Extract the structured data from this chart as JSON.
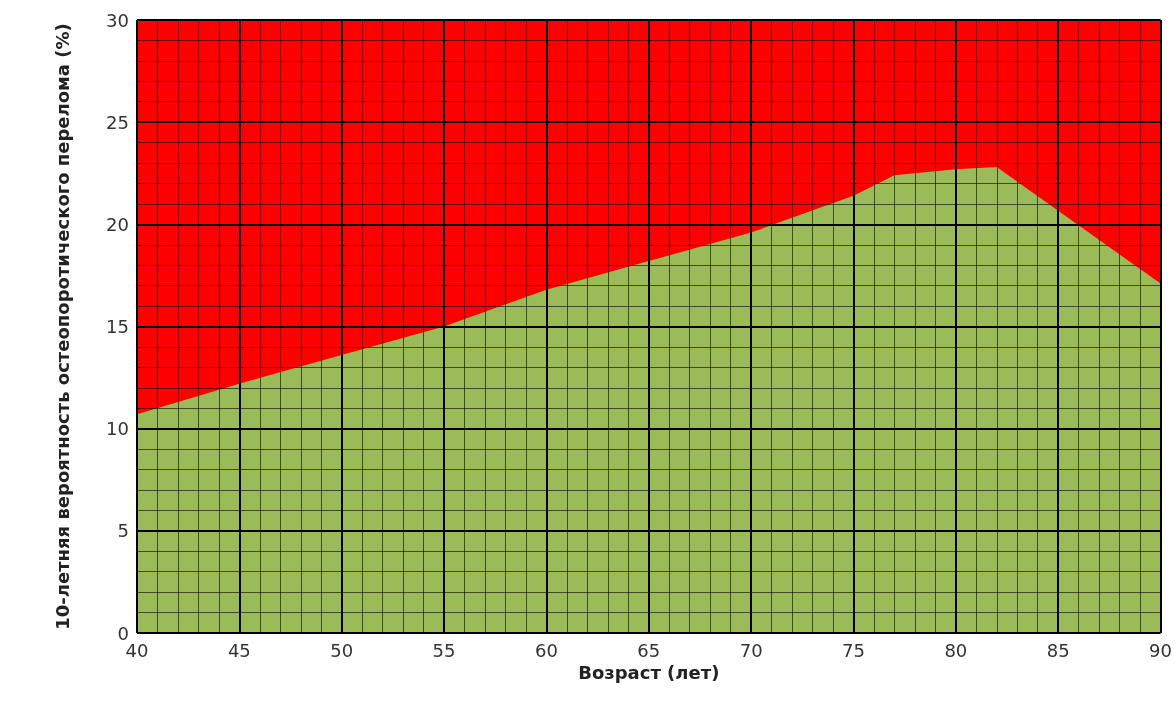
{
  "chart_data": {
    "type": "area",
    "stacked": true,
    "xlabel": "Возраст (лет)",
    "ylabel": "10-летняя вероятность остеопоротического перелома (%)",
    "x": [
      40,
      45,
      50,
      55,
      60,
      65,
      70,
      75,
      77,
      80,
      82,
      90
    ],
    "series": [
      {
        "color": "#9bbb59",
        "values": [
          10.7,
          12.2,
          13.6,
          15.0,
          16.8,
          18.2,
          19.6,
          21.4,
          22.4,
          22.7,
          22.8,
          17.1
        ]
      },
      {
        "color": "#ff0000",
        "values": [
          19.3,
          17.8,
          16.4,
          15.0,
          13.2,
          11.8,
          10.4,
          8.6,
          7.6,
          7.3,
          7.2,
          12.9
        ]
      }
    ],
    "xlim": [
      40,
      90
    ],
    "xticks": [
      40,
      45,
      50,
      55,
      60,
      65,
      70,
      75,
      80,
      85,
      90
    ],
    "ylim": [
      0,
      30
    ],
    "yticks": [
      0,
      5,
      10,
      15,
      20,
      25,
      30
    ],
    "grid": true
  }
}
